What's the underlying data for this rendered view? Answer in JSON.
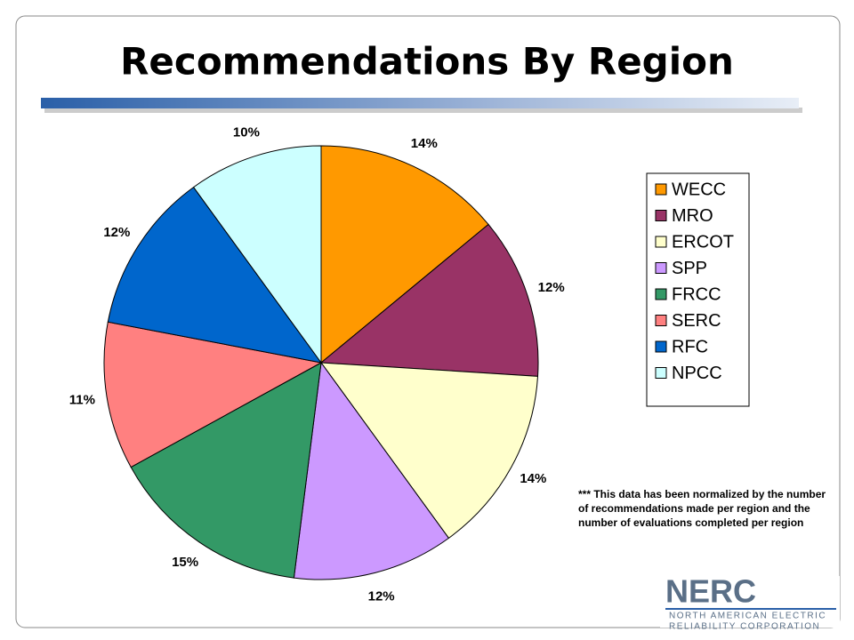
{
  "chart_data": {
    "type": "pie",
    "title": "Recommendations By Region",
    "categories": [
      "WECC",
      "MRO",
      "ERCOT",
      "SPP",
      "FRCC",
      "SERC",
      "RFC",
      "NPCC"
    ],
    "values": [
      14,
      12,
      14,
      12,
      15,
      11,
      12,
      10
    ],
    "value_labels": [
      "14%",
      "12%",
      "14%",
      "12%",
      "15%",
      "11%",
      "12%",
      "10%"
    ],
    "colors": [
      "#ff9900",
      "#993366",
      "#ffffcc",
      "#cc99ff",
      "#339966",
      "#ff8080",
      "#0066cc",
      "#ccffff"
    ],
    "legend": "right",
    "annotations": [
      "***  This data has been normalized by the number of recommendations made per region and the number of evaluations completed per region"
    ]
  },
  "logo": {
    "name": "NERC",
    "lines": [
      "NORTH AMERICAN ELECTRIC",
      "RELIABILITY CORPORATION"
    ]
  }
}
